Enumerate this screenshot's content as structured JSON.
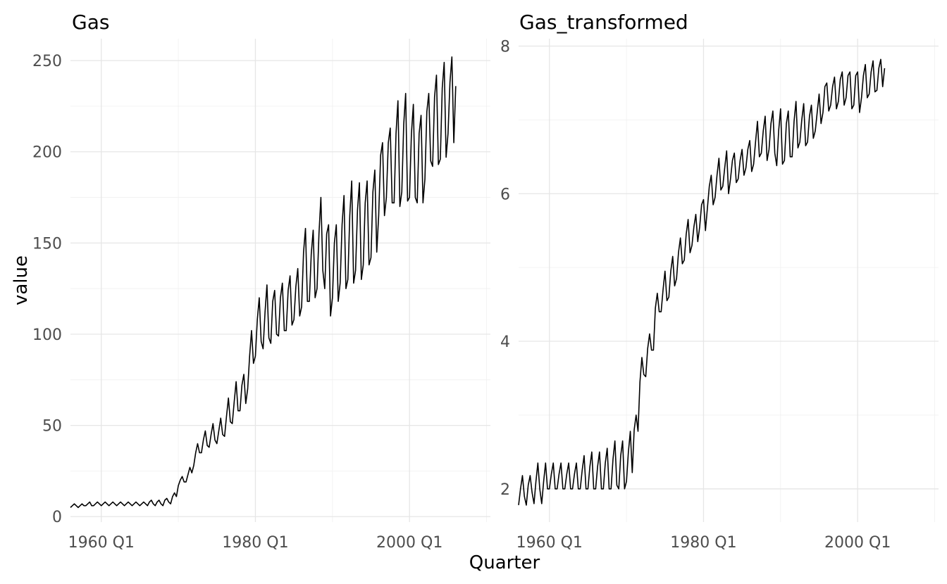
{
  "chart_data": [
    {
      "type": "line",
      "title": "Gas",
      "xlabel": "Quarter",
      "ylabel": "value",
      "xlim": [
        1956.0,
        2010.5
      ],
      "ylim": [
        -3,
        262
      ],
      "x_ticks": [
        {
          "value": 1960,
          "label": "1960 Q1"
        },
        {
          "value": 1980,
          "label": "1980 Q1"
        },
        {
          "value": 2000,
          "label": "2000 Q1"
        }
      ],
      "y_ticks": [
        {
          "value": 0,
          "label": "0"
        },
        {
          "value": 50,
          "label": "50"
        },
        {
          "value": 100,
          "label": "100"
        },
        {
          "value": 150,
          "label": "150"
        },
        {
          "value": 200,
          "label": "200"
        },
        {
          "value": 250,
          "label": "250"
        }
      ],
      "grid": true,
      "series": [
        {
          "x_start": 1956.0,
          "x_step": 0.25,
          "values": [
            5,
            6,
            7,
            6,
            5,
            6,
            7,
            6,
            6,
            7,
            8,
            6,
            6,
            7,
            8,
            7,
            6,
            7,
            8,
            7,
            6,
            7,
            8,
            7,
            6,
            7,
            8,
            7,
            6,
            7,
            8,
            7,
            6,
            7,
            8,
            7,
            6,
            7,
            8,
            7,
            6,
            8,
            9,
            7,
            6,
            8,
            9,
            7,
            6,
            9,
            10,
            8,
            7,
            11,
            13,
            11,
            17,
            20,
            22,
            19,
            19,
            23,
            27,
            24,
            28,
            35,
            40,
            35,
            35,
            42,
            47,
            39,
            38,
            45,
            51,
            42,
            40,
            47,
            54,
            45,
            44,
            55,
            65,
            52,
            51,
            63,
            74,
            58,
            58,
            72,
            78,
            62,
            70,
            88,
            102,
            84,
            88,
            108,
            120,
            96,
            92,
            112,
            127,
            98,
            95,
            118,
            124,
            100,
            99,
            120,
            128,
            102,
            102,
            124,
            132,
            105,
            108,
            126,
            136,
            110,
            115,
            145,
            158,
            118,
            118,
            144,
            157,
            120,
            125,
            155,
            175,
            135,
            125,
            155,
            160,
            110,
            120,
            150,
            160,
            118,
            128,
            160,
            176,
            125,
            130,
            165,
            184,
            128,
            135,
            168,
            183,
            130,
            138,
            172,
            184,
            138,
            142,
            178,
            190,
            145,
            165,
            198,
            205,
            165,
            175,
            205,
            213,
            172,
            172,
            210,
            228,
            170,
            178,
            215,
            232,
            173,
            175,
            210,
            226,
            175,
            172,
            210,
            220,
            172,
            185,
            222,
            232,
            195,
            192,
            230,
            242,
            193,
            196,
            235,
            249,
            197,
            210,
            238,
            252,
            205,
            236
          ]
        }
      ]
    },
    {
      "type": "line",
      "title": "Gas_transformed",
      "xlabel": "Quarter",
      "ylabel": "",
      "xlim": [
        1956.0,
        2010.5
      ],
      "ylim": [
        1.55,
        8.1
      ],
      "x_ticks": [
        {
          "value": 1960,
          "label": "1960 Q1"
        },
        {
          "value": 1980,
          "label": "1980 Q1"
        },
        {
          "value": 2000,
          "label": "2000 Q1"
        }
      ],
      "y_ticks": [
        {
          "value": 2,
          "label": "2"
        },
        {
          "value": 4,
          "label": "4"
        },
        {
          "value": 6,
          "label": "6"
        },
        {
          "value": 8,
          "label": "8"
        }
      ],
      "grid": true,
      "series": [
        {
          "x_start": 1956.0,
          "x_step": 0.25,
          "values": [
            1.78,
            2.0,
            2.18,
            1.9,
            1.78,
            2.05,
            2.18,
            1.95,
            1.8,
            2.1,
            2.35,
            2.0,
            1.8,
            2.1,
            2.35,
            2.0,
            2.0,
            2.2,
            2.35,
            2.0,
            2.0,
            2.2,
            2.35,
            2.0,
            2.0,
            2.2,
            2.35,
            2.0,
            2.0,
            2.2,
            2.35,
            2.0,
            2.0,
            2.25,
            2.45,
            2.0,
            2.0,
            2.3,
            2.5,
            2.0,
            2.0,
            2.3,
            2.5,
            2.0,
            2.0,
            2.35,
            2.55,
            2.0,
            2.0,
            2.4,
            2.65,
            2.05,
            2.0,
            2.45,
            2.65,
            2.0,
            2.1,
            2.5,
            2.78,
            2.22,
            2.8,
            3.0,
            2.78,
            3.45,
            3.78,
            3.55,
            3.52,
            3.9,
            4.1,
            3.88,
            3.88,
            4.45,
            4.65,
            4.4,
            4.4,
            4.7,
            4.95,
            4.55,
            4.6,
            4.95,
            5.15,
            4.75,
            4.85,
            5.2,
            5.4,
            5.05,
            5.1,
            5.45,
            5.65,
            5.2,
            5.3,
            5.55,
            5.72,
            5.35,
            5.55,
            5.85,
            5.92,
            5.5,
            5.8,
            6.1,
            6.25,
            5.85,
            5.95,
            6.25,
            6.48,
            6.05,
            6.1,
            6.35,
            6.58,
            6.0,
            6.2,
            6.45,
            6.55,
            6.15,
            6.2,
            6.45,
            6.6,
            6.25,
            6.35,
            6.6,
            6.72,
            6.3,
            6.4,
            6.7,
            6.98,
            6.5,
            6.55,
            6.85,
            7.05,
            6.45,
            6.6,
            6.95,
            7.12,
            6.55,
            6.38,
            6.85,
            7.15,
            6.4,
            6.45,
            6.95,
            7.12,
            6.5,
            6.5,
            6.98,
            7.25,
            6.62,
            6.7,
            7.0,
            7.22,
            6.65,
            6.7,
            7.05,
            7.2,
            6.75,
            6.85,
            7.1,
            7.35,
            6.95,
            7.1,
            7.45,
            7.5,
            7.12,
            7.2,
            7.45,
            7.58,
            7.15,
            7.25,
            7.55,
            7.65,
            7.2,
            7.3,
            7.6,
            7.65,
            7.15,
            7.2,
            7.6,
            7.65,
            7.1,
            7.3,
            7.6,
            7.75,
            7.3,
            7.35,
            7.65,
            7.8,
            7.38,
            7.4,
            7.7,
            7.82,
            7.45,
            7.7
          ]
        }
      ]
    }
  ]
}
